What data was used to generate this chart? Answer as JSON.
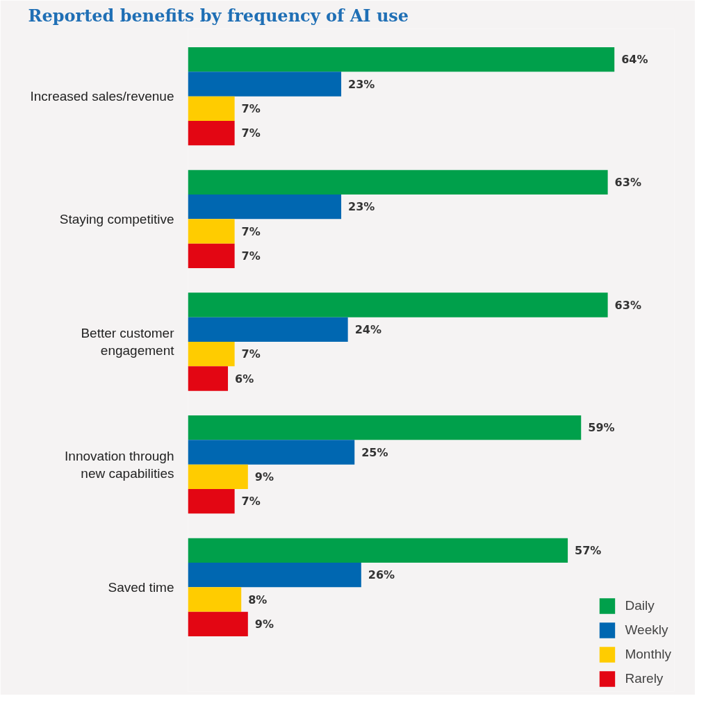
{
  "chart_data": {
    "type": "bar",
    "orientation": "horizontal",
    "title": "Reported benefits by frequency of AI use",
    "categories": [
      "Increased sales/revenue",
      "Staying competitive",
      "Better customer engagement",
      "Innovation through new capabilities",
      "Saved time"
    ],
    "series": [
      {
        "name": "Daily",
        "color": "#00a04b",
        "values": [
          64,
          63,
          63,
          59,
          57
        ],
        "value_labels": [
          "64%",
          "63%",
          "63%",
          "59%",
          "57%"
        ]
      },
      {
        "name": "Weekly",
        "color": "#0067b1",
        "values": [
          23,
          23,
          24,
          25,
          26
        ],
        "value_labels": [
          "23%",
          "23%",
          "24%",
          "25%",
          "26%"
        ]
      },
      {
        "name": "Monthly",
        "color": "#ffcc00",
        "values": [
          7,
          7,
          7,
          9,
          8
        ],
        "value_labels": [
          "7%",
          "7%",
          "7%",
          "9%",
          "8%"
        ]
      },
      {
        "name": "Rarely",
        "color": "#e30613",
        "values": [
          7,
          7,
          6,
          7,
          9
        ],
        "value_labels": [
          "7%",
          "7%",
          "6%",
          "7%",
          "9%"
        ]
      }
    ],
    "xlim": [
      0,
      73
    ],
    "tick_labels": "y",
    "grid": false,
    "legend": "bottom right"
  }
}
